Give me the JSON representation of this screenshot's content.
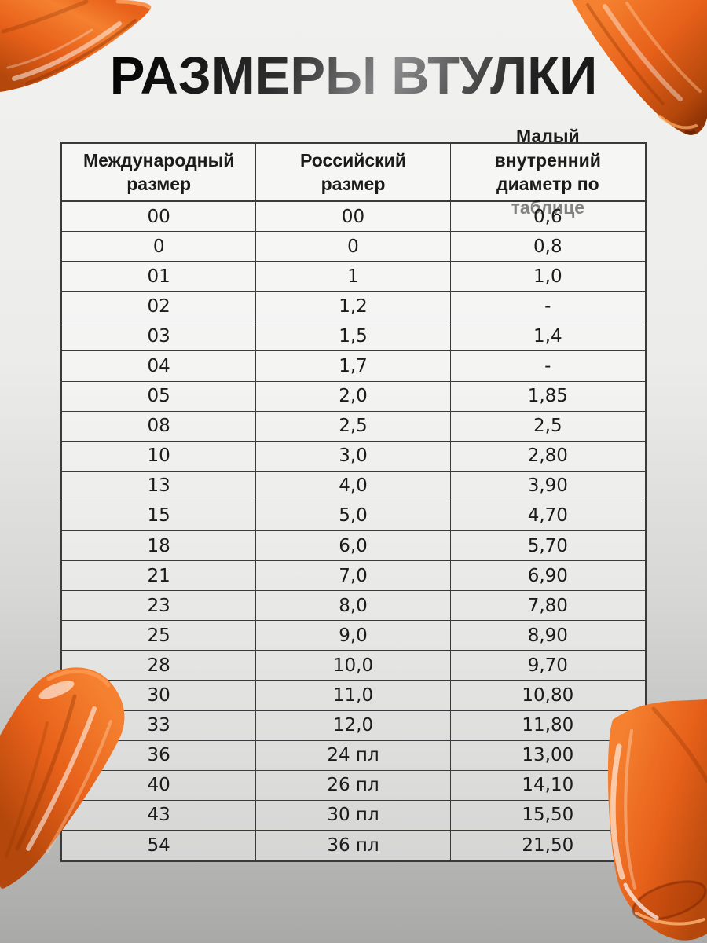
{
  "page": {
    "title": "РАЗМЕРЫ ВТУЛКИ"
  },
  "table": {
    "headers": [
      "Международный размер",
      "Российский размер",
      "Малый внутренний диаметр по таблице"
    ],
    "rows": [
      [
        "00",
        "00",
        "0,6"
      ],
      [
        "0",
        "0",
        "0,8"
      ],
      [
        "01",
        "1",
        "1,0"
      ],
      [
        "02",
        "1,2",
        "-"
      ],
      [
        "03",
        "1,5",
        "1,4"
      ],
      [
        "04",
        "1,7",
        "-"
      ],
      [
        "05",
        "2,0",
        "1,85"
      ],
      [
        "08",
        "2,5",
        "2,5"
      ],
      [
        "10",
        "3,0",
        "2,80"
      ],
      [
        "13",
        "4,0",
        "3,90"
      ],
      [
        "15",
        "5,0",
        "4,70"
      ],
      [
        "18",
        "6,0",
        "5,70"
      ],
      [
        "21",
        "7,0",
        "6,90"
      ],
      [
        "23",
        "8,0",
        "7,80"
      ],
      [
        "25",
        "9,0",
        "8,90"
      ],
      [
        "28",
        "10,0",
        "9,70"
      ],
      [
        "30",
        "11,0",
        "10,80"
      ],
      [
        "33",
        "12,0",
        "11,80"
      ],
      [
        "36",
        "24 пл",
        "13,00"
      ],
      [
        "40",
        "26 пл",
        "14,10"
      ],
      [
        "43",
        "30 пл",
        "15,50"
      ],
      [
        "54",
        "36 пл",
        "21,50"
      ]
    ]
  },
  "decorations": {
    "paint_smears": [
      "top-left",
      "top-right",
      "bottom-left",
      "bottom-right"
    ]
  },
  "colors": {
    "background_top": "#f1f1ef",
    "background_bottom": "#a9a9a8",
    "cell_fill": "rgba(255,255,255,0.45)",
    "table_border": "#3a3a3a",
    "text": "#1b1b1b",
    "paint_orange": "#e7611a",
    "paint_orange_bright": "#f5802f",
    "paint_orange_deep": "#b4470b",
    "paint_orange_dark": "#8f3305"
  }
}
